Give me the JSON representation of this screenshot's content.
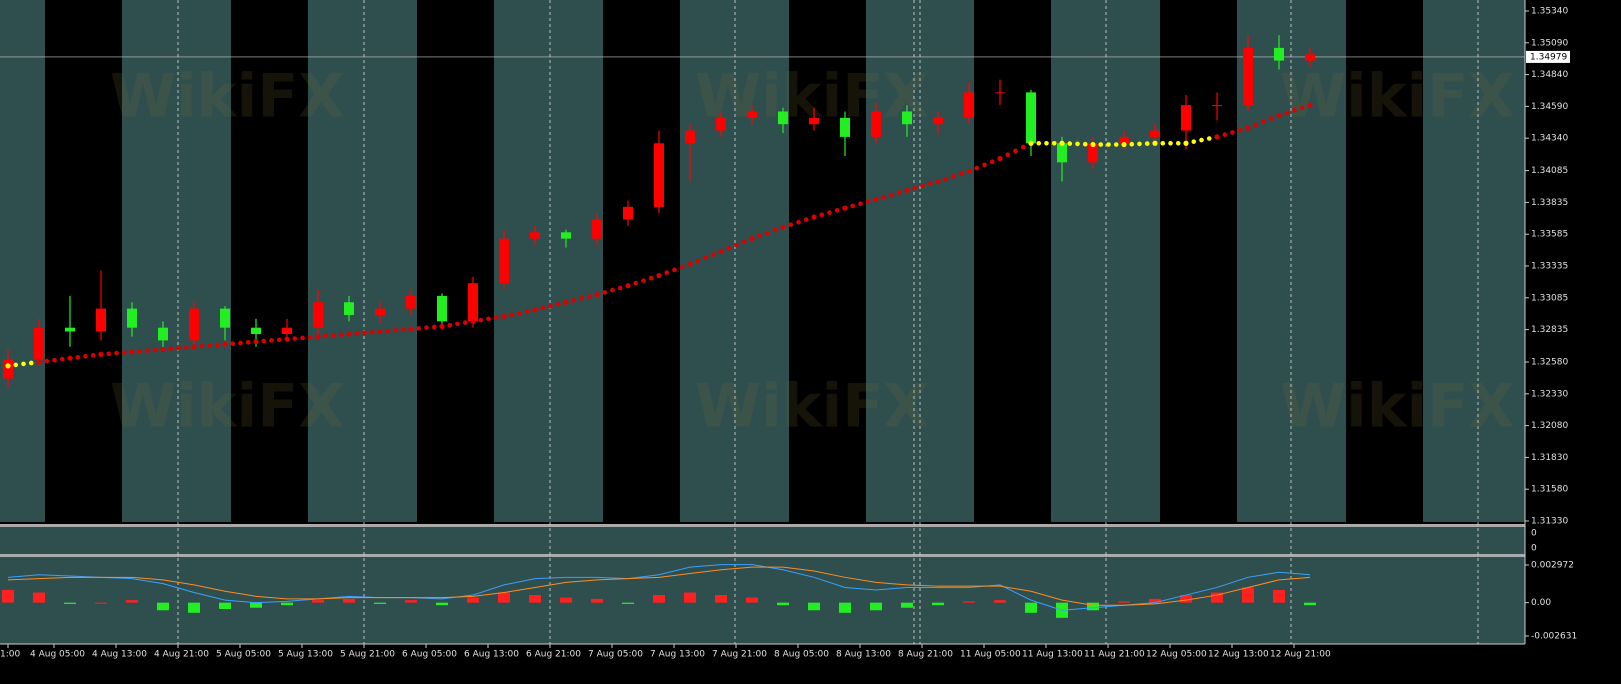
{
  "watermark": "WikiFX",
  "price_axis": [
    "1.35340",
    "1.35090",
    "1.34840",
    "1.34590",
    "1.34340",
    "1.34085",
    "1.33835",
    "1.33585",
    "1.33335",
    "1.33085",
    "1.32835",
    "1.32580",
    "1.32330",
    "1.32080",
    "1.31830",
    "1.31580",
    "1.31330"
  ],
  "current_price": "1.34979",
  "middle_panel": [
    "0",
    "0"
  ],
  "macd_axis": [
    "0.002972",
    "0.00",
    "-0.002631"
  ],
  "time_axis": [
    "1:00",
    "4 Aug 05:00",
    "4 Aug 13:00",
    "4 Aug 21:00",
    "5 Aug 05:00",
    "5 Aug 13:00",
    "5 Aug 21:00",
    "6 Aug 05:00",
    "6 Aug 13:00",
    "6 Aug 21:00",
    "7 Aug 05:00",
    "7 Aug 13:00",
    "7 Aug 21:00",
    "8 Aug 05:00",
    "8 Aug 13:00",
    "8 Aug 21:00",
    "11 Aug 05:00",
    "11 Aug 13:00",
    "11 Aug 21:00",
    "12 Aug 05:00",
    "12 Aug 13:00",
    "12 Aug 21:00"
  ],
  "candles": [
    [
      1.3245,
      1.3268,
      1.3238,
      1.326
    ],
    [
      1.326,
      1.3292,
      1.3255,
      1.3285
    ],
    [
      1.3285,
      1.331,
      1.327,
      1.3282
    ],
    [
      1.3282,
      1.333,
      1.3275,
      1.33
    ],
    [
      1.33,
      1.3305,
      1.3278,
      1.3285
    ],
    [
      1.3285,
      1.329,
      1.3268,
      1.3275
    ],
    [
      1.3275,
      1.3305,
      1.327,
      1.33
    ],
    [
      1.33,
      1.3302,
      1.3275,
      1.3285
    ],
    [
      1.3285,
      1.3292,
      1.327,
      1.328
    ],
    [
      1.328,
      1.3292,
      1.3275,
      1.3285
    ],
    [
      1.3285,
      1.3315,
      1.328,
      1.3305
    ],
    [
      1.3305,
      1.331,
      1.329,
      1.3295
    ],
    [
      1.3295,
      1.3305,
      1.3288,
      1.33
    ],
    [
      1.33,
      1.3315,
      1.3295,
      1.331
    ],
    [
      1.331,
      1.3312,
      1.3285,
      1.329
    ],
    [
      1.329,
      1.3325,
      1.3285,
      1.332
    ],
    [
      1.332,
      1.3362,
      1.3315,
      1.3355
    ],
    [
      1.3355,
      1.3365,
      1.335,
      1.336
    ],
    [
      1.336,
      1.3362,
      1.3348,
      1.3355
    ],
    [
      1.3355,
      1.3375,
      1.335,
      1.337
    ],
    [
      1.337,
      1.3385,
      1.3365,
      1.338
    ],
    [
      1.338,
      1.344,
      1.3375,
      1.343
    ],
    [
      1.343,
      1.3445,
      1.34,
      1.344
    ],
    [
      1.344,
      1.3455,
      1.3435,
      1.345
    ],
    [
      1.345,
      1.346,
      1.3445,
      1.3455
    ],
    [
      1.3455,
      1.3458,
      1.3438,
      1.3445
    ],
    [
      1.3445,
      1.3458,
      1.344,
      1.345
    ],
    [
      1.345,
      1.3455,
      1.342,
      1.3435
    ],
    [
      1.3435,
      1.3462,
      1.343,
      1.3455
    ],
    [
      1.3455,
      1.346,
      1.3435,
      1.3445
    ],
    [
      1.3445,
      1.3455,
      1.3438,
      1.345
    ],
    [
      1.345,
      1.3478,
      1.3445,
      1.347
    ],
    [
      1.347,
      1.348,
      1.346,
      1.347
    ],
    [
      1.347,
      1.3472,
      1.342,
      1.343
    ],
    [
      1.343,
      1.3435,
      1.34,
      1.3415
    ],
    [
      1.3415,
      1.3435,
      1.341,
      1.343
    ],
    [
      1.343,
      1.344,
      1.3425,
      1.3435
    ],
    [
      1.3435,
      1.3445,
      1.3428,
      1.344
    ],
    [
      1.344,
      1.3468,
      1.3425,
      1.346
    ],
    [
      1.346,
      1.347,
      1.3448,
      1.346
    ],
    [
      1.346,
      1.3515,
      1.3455,
      1.3505
    ],
    [
      1.3505,
      1.3515,
      1.3488,
      1.3495
    ],
    [
      1.3495,
      1.3505,
      1.349,
      1.35
    ]
  ],
  "up_color": "#ff0000",
  "down_color": "#22ee22",
  "ma": [
    1.3255,
    1.3258,
    1.3261,
    1.3264,
    1.3266,
    1.3268,
    1.327,
    1.3272,
    1.3274,
    1.3276,
    1.3278,
    1.328,
    1.3282,
    1.3284,
    1.3286,
    1.329,
    1.3294,
    1.3299,
    1.3305,
    1.3311,
    1.3318,
    1.3326,
    1.3335,
    1.3345,
    1.3355,
    1.3364,
    1.3372,
    1.3379,
    1.3386,
    1.3393,
    1.34,
    1.3408,
    1.3418,
    1.343,
    1.343,
    1.3429,
    1.3429,
    1.343,
    1.343,
    1.3435,
    1.3442,
    1.3452,
    1.346
  ],
  "ma_colors": [
    "#ffff00",
    "#dd0000",
    "#dd0000",
    "#dd0000",
    "#dd0000",
    "#dd0000",
    "#dd0000",
    "#dd0000",
    "#dd0000",
    "#dd0000",
    "#dd0000",
    "#dd0000",
    "#dd0000",
    "#dd0000",
    "#dd0000",
    "#dd0000",
    "#dd0000",
    "#dd0000",
    "#dd0000",
    "#dd0000",
    "#dd0000",
    "#dd0000",
    "#dd0000",
    "#dd0000",
    "#dd0000",
    "#dd0000",
    "#dd0000",
    "#dd0000",
    "#dd0000",
    "#dd0000",
    "#dd0000",
    "#dd0000",
    "#dd0000",
    "#ffff00",
    "#ffff00",
    "#ffff00",
    "#ffff00",
    "#ffff00",
    "#ffff00",
    "#dd0000",
    "#dd0000",
    "#dd0000",
    "#dd0000"
  ],
  "macd_hist": [
    0.001,
    0.0008,
    -0.0001,
    0,
    0.0002,
    -0.0006,
    -0.0008,
    -0.0005,
    -0.0004,
    -0.0002,
    0.0002,
    0.0003,
    -0.0001,
    0.0002,
    -0.0002,
    0.0004,
    0.0008,
    0.0006,
    0.0004,
    0.0003,
    -0.0001,
    0.0006,
    0.0008,
    0.0006,
    0.0004,
    -0.0002,
    -0.0006,
    -0.0008,
    -0.0006,
    -0.0004,
    -0.0002,
    0.0001,
    0.0002,
    -0.0008,
    -0.0012,
    -0.0006,
    0.0001,
    0.0003,
    0.0006,
    0.0008,
    0.0012,
    0.001,
    -0.0002
  ],
  "macd_line": [
    0.002,
    0.0022,
    0.0021,
    0.002,
    0.0019,
    0.0015,
    0.0008,
    0.0002,
    0,
    0.0001,
    0.0003,
    0.0005,
    0.0004,
    0.0004,
    0.0003,
    0.0006,
    0.0014,
    0.0019,
    0.002,
    0.002,
    0.0019,
    0.0022,
    0.0028,
    0.003,
    0.003,
    0.0026,
    0.002,
    0.0012,
    0.001,
    0.0012,
    0.0012,
    0.0012,
    0.0014,
    0.0002,
    -0.0006,
    -0.0004,
    -0.0002,
    0,
    0.0006,
    0.0012,
    0.002,
    0.0024,
    0.0022
  ],
  "signal_line": [
    0.0018,
    0.0019,
    0.002,
    0.002,
    0.002,
    0.0018,
    0.0014,
    0.0009,
    0.0005,
    0.0003,
    0.0003,
    0.0004,
    0.0004,
    0.0004,
    0.0004,
    0.0005,
    0.0008,
    0.0012,
    0.0016,
    0.0018,
    0.0019,
    0.002,
    0.0023,
    0.0026,
    0.0028,
    0.0028,
    0.0025,
    0.002,
    0.0016,
    0.0014,
    0.0013,
    0.0013,
    0.0013,
    0.0009,
    0.0002,
    -0.0002,
    -0.0002,
    -0.0001,
    0.0002,
    0.0006,
    0.0012,
    0.0018,
    0.002
  ],
  "macd_up_color": "#ff2020",
  "macd_down_color": "#22ee22",
  "macd_line_color": "#3aa0ff",
  "signal_color": "#ff8c20"
}
